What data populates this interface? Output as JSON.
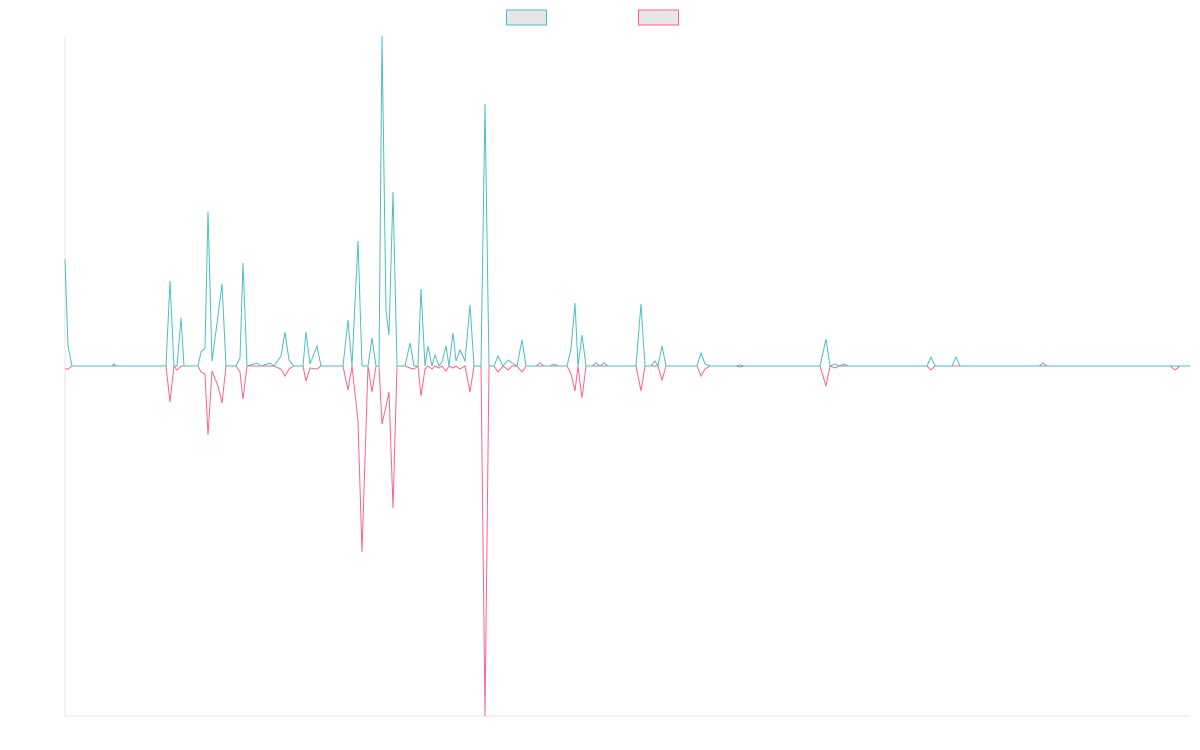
{
  "chart_data": {
    "type": "line",
    "x": [
      0,
      3,
      7,
      47,
      49,
      51,
      101,
      105,
      109,
      112,
      116,
      119,
      133,
      136,
      140,
      143,
      147,
      153,
      157,
      161,
      171,
      175,
      178,
      182,
      192,
      196,
      205,
      209,
      216,
      220,
      224,
      229,
      238,
      241,
      245,
      252,
      256,
      278,
      283,
      287,
      293,
      297,
      303,
      307,
      311,
      314,
      317,
      321,
      324,
      328,
      332,
      340,
      345,
      349,
      353,
      356,
      360,
      363,
      367,
      370,
      374,
      377,
      381,
      384,
      388,
      391,
      395,
      400,
      405,
      409,
      416,
      420,
      424,
      429,
      433,
      438,
      443,
      447,
      452,
      457,
      461,
      471,
      475,
      479,
      485,
      489,
      493,
      502,
      506,
      510,
      513,
      517,
      521,
      527,
      531,
      535,
      539,
      543,
      571,
      576,
      580,
      586,
      590,
      593,
      597,
      601,
      632,
      636,
      640,
      645,
      671,
      675,
      679,
      755,
      761,
      765,
      770,
      774,
      779,
      783,
      862,
      866,
      870,
      887,
      891,
      895,
      974,
      978,
      982,
      1105,
      1110,
      1115,
      1125
    ],
    "series": [
      {
        "color": "#4bc0c0",
        "values": [
          107,
          20,
          0,
          0,
          2,
          0,
          0,
          85,
          0,
          0,
          48,
          0,
          0,
          14,
          18,
          154,
          5,
          50,
          82,
          0,
          0,
          8,
          103,
          0,
          3,
          0,
          3,
          0,
          10,
          34,
          6,
          0,
          0,
          34,
          2,
          20,
          0,
          0,
          46,
          0,
          125,
          0,
          0,
          28,
          0,
          0,
          330,
          55,
          31,
          174,
          0,
          0,
          23,
          0,
          0,
          77,
          0,
          20,
          0,
          11,
          0,
          4,
          20,
          0,
          33,
          5,
          16,
          5,
          61,
          0,
          0,
          262,
          0,
          0,
          10,
          0,
          6,
          3,
          0,
          26,
          0,
          0,
          3,
          0,
          0,
          2,
          0,
          0,
          17,
          63,
          0,
          31,
          0,
          0,
          3,
          0,
          3,
          0,
          0,
          62,
          0,
          0,
          5,
          0,
          20,
          0,
          0,
          13,
          2,
          0,
          0,
          1,
          0,
          0,
          27,
          0,
          2,
          0,
          2,
          0,
          0,
          9,
          0,
          0,
          9,
          0,
          0,
          3,
          0,
          0,
          0,
          0,
          0
        ]
      },
      {
        "color": "#ff6384",
        "values": [
          -3,
          -3,
          0,
          0,
          0,
          0,
          0,
          -36,
          0,
          -4,
          0,
          0,
          0,
          -6,
          -8,
          -69,
          -5,
          -20,
          -37,
          0,
          0,
          -6,
          -33,
          0,
          0,
          0,
          0,
          0,
          -3,
          -10,
          -3,
          0,
          0,
          -15,
          -2,
          -3,
          0,
          0,
          -24,
          0,
          -55,
          -186,
          0,
          -26,
          0,
          0,
          -58,
          -40,
          -26,
          -142,
          0,
          0,
          -2,
          -3,
          0,
          -30,
          -3,
          0,
          -3,
          0,
          -2,
          0,
          -5,
          0,
          -2,
          0,
          -3,
          0,
          -26,
          0,
          0,
          -350,
          0,
          0,
          -6,
          0,
          -4,
          0,
          0,
          -6,
          0,
          0,
          0,
          0,
          0,
          0,
          0,
          0,
          -8,
          -25,
          0,
          -32,
          0,
          0,
          0,
          0,
          0,
          0,
          0,
          -25,
          0,
          0,
          0,
          0,
          -14,
          0,
          0,
          -10,
          -3,
          0,
          0,
          -1,
          0,
          0,
          -20,
          0,
          -2,
          0,
          0,
          0,
          0,
          -4,
          0,
          0,
          0,
          0,
          0,
          0,
          0,
          0,
          -4,
          0,
          0
        ]
      }
    ],
    "xlim": [
      0,
      1125
    ],
    "ylim": [
      -350,
      330
    ]
  }
}
